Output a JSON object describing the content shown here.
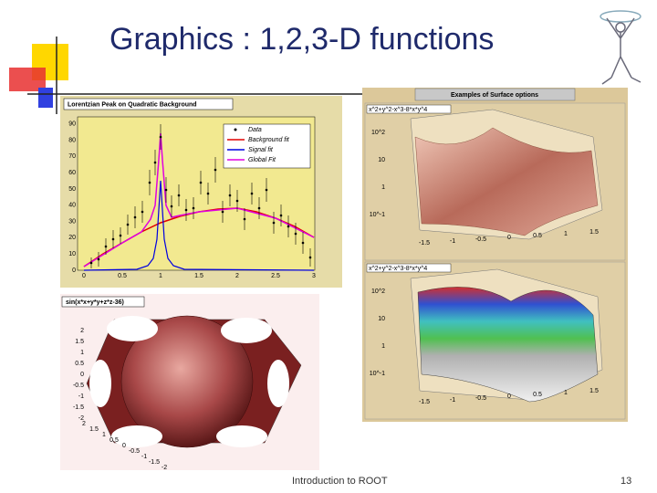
{
  "title": "Graphics : 1,2,3-D functions",
  "footer": "Introduction to ROOT",
  "page_number": "13",
  "panels": [
    {
      "title": "Lorentzian Peak on Quadratic Background",
      "legend": [
        "Data",
        "Background fit",
        "Signal fit",
        "Global Fit"
      ],
      "yticks": [
        "0",
        "10",
        "20",
        "30",
        "40",
        "50",
        "60",
        "70",
        "80",
        "90"
      ],
      "xticks": [
        "0",
        "0.5",
        "1",
        "1.5",
        "2",
        "2.5",
        "3"
      ]
    },
    {
      "title": "sin(x*x+y*y+z*z-36)",
      "yticks": [
        "2",
        "1.5",
        "1",
        "0.5",
        "0",
        "-0.5",
        "-1",
        "-1.5",
        "-2"
      ],
      "xticks": [
        "-2",
        "-1.5",
        "-1",
        "-0.5",
        "0",
        "0.5",
        "1",
        "1.5",
        "2"
      ]
    },
    {
      "title": "Examples of Surface options",
      "subplots": [
        {
          "label": "x^2+y^2-x^3-8*x*y^4",
          "zticks": [
            "10^2",
            "10",
            "1",
            "10^-1"
          ],
          "xticks": [
            "-1.5",
            "-1",
            "-0.5",
            "0",
            "0.5",
            "1",
            "1.5"
          ]
        },
        {
          "label": "x^2+y^2-x^3-8*x*y^4",
          "zticks": [
            "10^2",
            "10",
            "1",
            "10^-1"
          ],
          "xticks": [
            "-1.5",
            "-1",
            "-0.5",
            "0",
            "0.5",
            "1",
            "1.5"
          ]
        }
      ]
    }
  ]
}
